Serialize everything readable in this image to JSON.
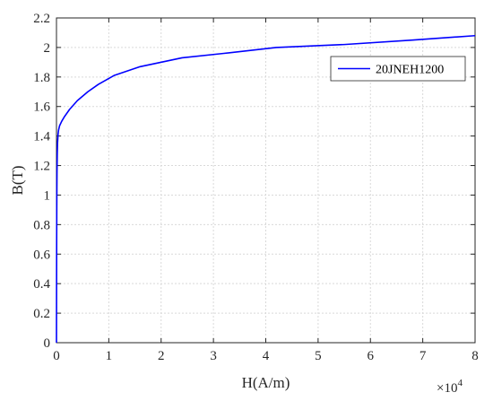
{
  "chart_data": {
    "type": "line",
    "xlabel": "H(A/m)",
    "ylabel": "B(T)",
    "x_multiplier": "×10",
    "x_exponent": "4",
    "xlim": [
      0,
      80000
    ],
    "ylim": [
      0,
      2.2
    ],
    "x_ticks": [
      0,
      10000,
      20000,
      30000,
      40000,
      50000,
      60000,
      70000,
      80000
    ],
    "x_tick_labels": [
      "0",
      "1",
      "2",
      "3",
      "4",
      "5",
      "6",
      "7",
      "8"
    ],
    "y_ticks": [
      0,
      0.2,
      0.4,
      0.6,
      0.8,
      1,
      1.2,
      1.4,
      1.6,
      1.8,
      2,
      2.2
    ],
    "y_tick_labels": [
      "0",
      "0.2",
      "0.4",
      "0.6",
      "0.8",
      "1",
      "1.2",
      "1.4",
      "1.6",
      "1.8",
      "2",
      "2.2"
    ],
    "grid": true,
    "legend_position": "top-right",
    "series": [
      {
        "name": "20JNEH1200",
        "color": "#0000ff",
        "x": [
          0,
          20,
          40,
          60,
          80,
          100,
          150,
          200,
          300,
          400,
          600,
          1000,
          1500,
          2500,
          4000,
          6000,
          8000,
          11000,
          16000,
          24000,
          32000,
          42000,
          55000,
          68000,
          80000
        ],
        "y": [
          0,
          0.4,
          0.7,
          0.9,
          1.05,
          1.15,
          1.28,
          1.35,
          1.41,
          1.44,
          1.47,
          1.5,
          1.53,
          1.58,
          1.64,
          1.7,
          1.75,
          1.81,
          1.87,
          1.93,
          1.96,
          2.0,
          2.02,
          2.05,
          2.08
        ]
      }
    ]
  },
  "colors": {
    "grid": "#d9d9d9",
    "axis": "#262626"
  }
}
